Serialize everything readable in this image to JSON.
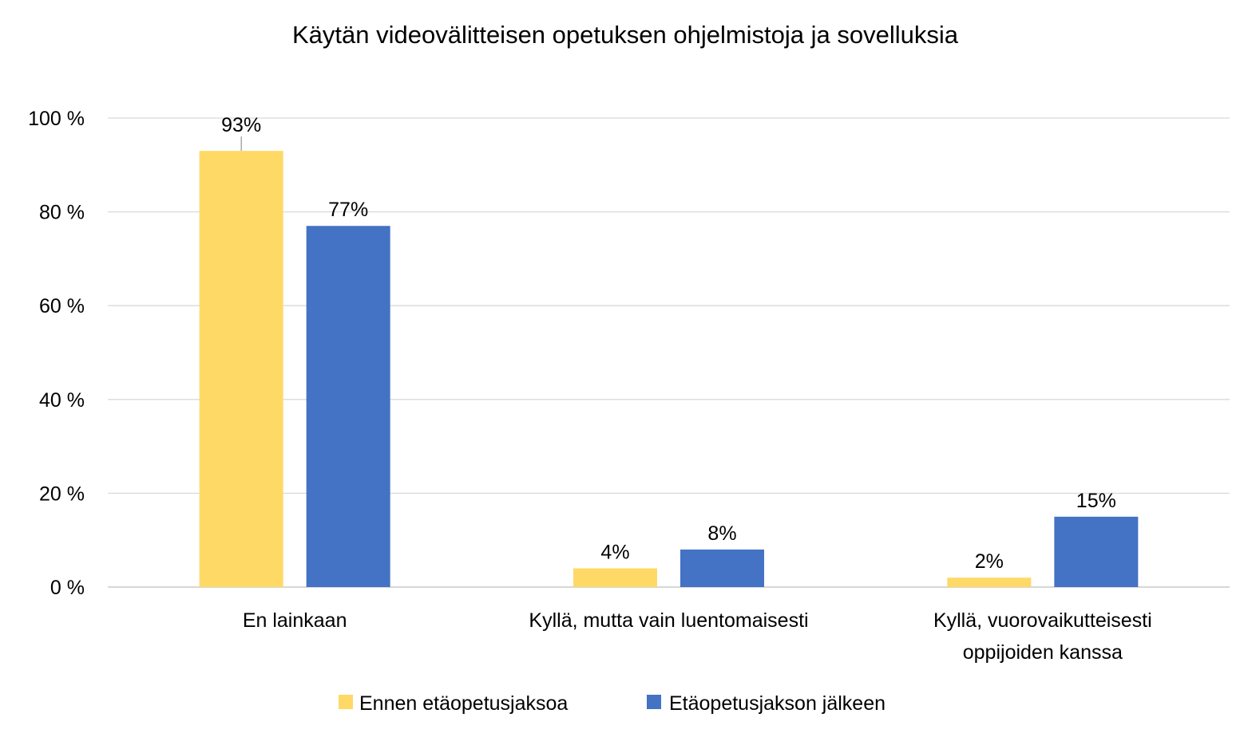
{
  "chart_data": {
    "type": "bar",
    "title": "Käytän videovälitteisen opetuksen ohjelmistoja ja sovelluksia",
    "xlabel": "",
    "ylabel": "",
    "ylim": [
      0,
      100
    ],
    "yticks": [
      0,
      20,
      40,
      60,
      80,
      100
    ],
    "ytick_labels": [
      "0 %",
      "20 %",
      "40 %",
      "60 %",
      "80 %",
      "100 %"
    ],
    "grid": true,
    "legend_position": "bottom",
    "categories": [
      [
        "En lainkaan"
      ],
      [
        "Kyllä, mutta vain luentomaisesti"
      ],
      [
        "Kyllä, vuorovaikutteisesti",
        "oppijoiden kanssa"
      ]
    ],
    "series": [
      {
        "name": "Ennen etäopetusjaksoa",
        "color": "#FFD966",
        "values": [
          93,
          4,
          2
        ],
        "labels": [
          "93%",
          "4%",
          "2%"
        ]
      },
      {
        "name": "Etäopetusjakson jälkeen",
        "color": "#4472C4",
        "values": [
          77,
          8,
          15
        ],
        "labels": [
          "77%",
          "8%",
          "15%"
        ]
      }
    ]
  }
}
